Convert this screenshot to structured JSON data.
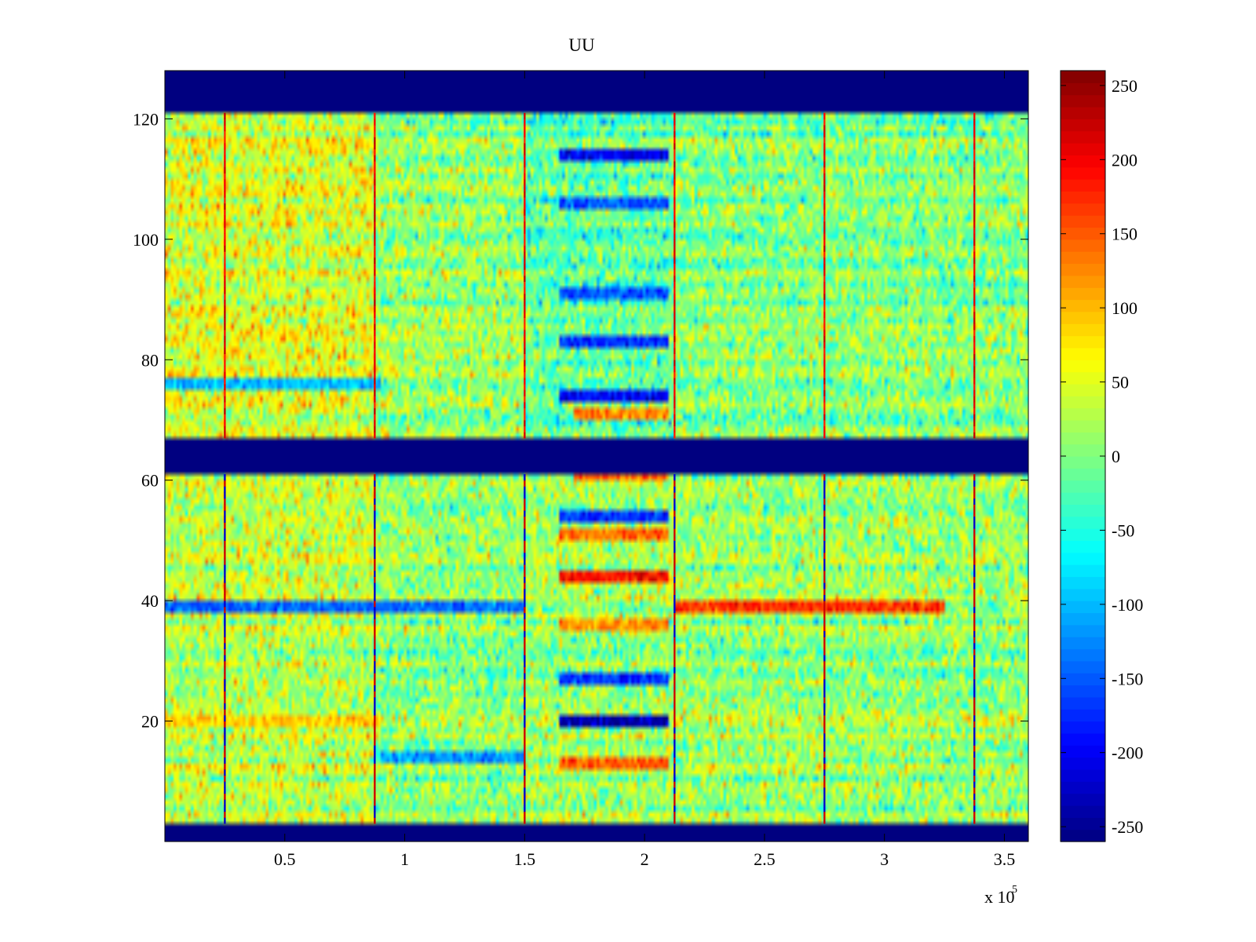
{
  "chart_data": {
    "type": "heatmap",
    "title": "UU",
    "xlabel": "",
    "ylabel": "",
    "x_scale_label": "x 10",
    "x_scale_exponent": "5",
    "xlim": [
      0,
      3.6
    ],
    "ylim": [
      0,
      128
    ],
    "x_ticks": [
      {
        "value": 0.5,
        "label": "0.5"
      },
      {
        "value": 1,
        "label": "1"
      },
      {
        "value": 1.5,
        "label": "1.5"
      },
      {
        "value": 2,
        "label": "2"
      },
      {
        "value": 2.5,
        "label": "2.5"
      },
      {
        "value": 3,
        "label": "3"
      },
      {
        "value": 3.5,
        "label": "3.5"
      }
    ],
    "y_ticks": [
      {
        "value": 20,
        "label": "20"
      },
      {
        "value": 40,
        "label": "40"
      },
      {
        "value": 60,
        "label": "60"
      },
      {
        "value": 80,
        "label": "80"
      },
      {
        "value": 100,
        "label": "100"
      },
      {
        "value": 120,
        "label": "120"
      }
    ],
    "colorbar": {
      "colormap": "jet",
      "clim": [
        -260,
        260
      ],
      "ticks": [
        {
          "value": 250,
          "label": "250"
        },
        {
          "value": 200,
          "label": "200"
        },
        {
          "value": 150,
          "label": "150"
        },
        {
          "value": 100,
          "label": "100"
        },
        {
          "value": 50,
          "label": "50"
        },
        {
          "value": 0,
          "label": "0"
        },
        {
          "value": -50,
          "label": "-50"
        },
        {
          "value": -100,
          "label": "-100"
        },
        {
          "value": -150,
          "label": "-150"
        },
        {
          "value": -200,
          "label": "-200"
        },
        {
          "value": -250,
          "label": "-250"
        }
      ]
    },
    "masked_bands_y": [
      [
        0,
        3
      ],
      [
        61,
        67
      ],
      [
        121,
        128
      ]
    ],
    "masked_value": -260,
    "vertical_spike_lines_x": [
      0.25,
      0.875,
      1.5,
      2.125,
      2.75,
      3.375
    ],
    "regions": [
      {
        "x": [
          0,
          0.875
        ],
        "y": [
          67,
          121
        ],
        "mean": 45
      },
      {
        "x": [
          0.875,
          1.5
        ],
        "y": [
          67,
          121
        ],
        "mean": 10
      },
      {
        "x": [
          1.5,
          2.125
        ],
        "y": [
          67,
          121
        ],
        "mean": -20
      },
      {
        "x": [
          2.125,
          3.6
        ],
        "y": [
          67,
          121
        ],
        "mean": 0
      },
      {
        "x": [
          0,
          0.875
        ],
        "y": [
          3,
          61
        ],
        "mean": 30
      },
      {
        "x": [
          0.875,
          1.5
        ],
        "y": [
          3,
          61
        ],
        "mean": 5
      },
      {
        "x": [
          1.5,
          2.125
        ],
        "y": [
          3,
          61
        ],
        "mean": 15
      },
      {
        "x": [
          2.125,
          3.6
        ],
        "y": [
          3,
          61
        ],
        "mean": 10
      }
    ],
    "row_anomalies": [
      {
        "y": 114,
        "x": [
          1.65,
          2.1
        ],
        "value": -200
      },
      {
        "y": 106,
        "x": [
          1.65,
          2.1
        ],
        "value": -150
      },
      {
        "y": 91,
        "x": [
          1.65,
          2.1
        ],
        "value": -150
      },
      {
        "y": 83,
        "x": [
          1.65,
          2.1
        ],
        "value": -170
      },
      {
        "y": 76,
        "x": [
          0,
          0.9
        ],
        "value": -100
      },
      {
        "y": 74,
        "x": [
          1.65,
          2.1
        ],
        "value": -200
      },
      {
        "y": 71,
        "x": [
          1.7,
          2.1
        ],
        "value": 130
      },
      {
        "y": 61,
        "x": [
          1.7,
          2.1
        ],
        "value": 150
      },
      {
        "y": 54,
        "x": [
          1.65,
          2.1
        ],
        "value": -170
      },
      {
        "y": 51,
        "x": [
          1.65,
          2.1
        ],
        "value": 140
      },
      {
        "y": 44,
        "x": [
          1.65,
          2.1
        ],
        "value": 190
      },
      {
        "y": 39,
        "x": [
          0,
          1.5
        ],
        "value": -140
      },
      {
        "y": 39,
        "x": [
          2.125,
          3.25
        ],
        "value": 170
      },
      {
        "y": 36,
        "x": [
          1.65,
          2.1
        ],
        "value": 120
      },
      {
        "y": 27,
        "x": [
          1.65,
          2.1
        ],
        "value": -170
      },
      {
        "y": 20,
        "x": [
          1.65,
          2.1
        ],
        "value": -230
      },
      {
        "y": 20,
        "x": [
          0,
          0.9
        ],
        "value": 90
      },
      {
        "y": 14,
        "x": [
          0.9,
          1.5
        ],
        "value": -120
      },
      {
        "y": 13,
        "x": [
          1.65,
          2.1
        ],
        "value": 150
      }
    ]
  }
}
